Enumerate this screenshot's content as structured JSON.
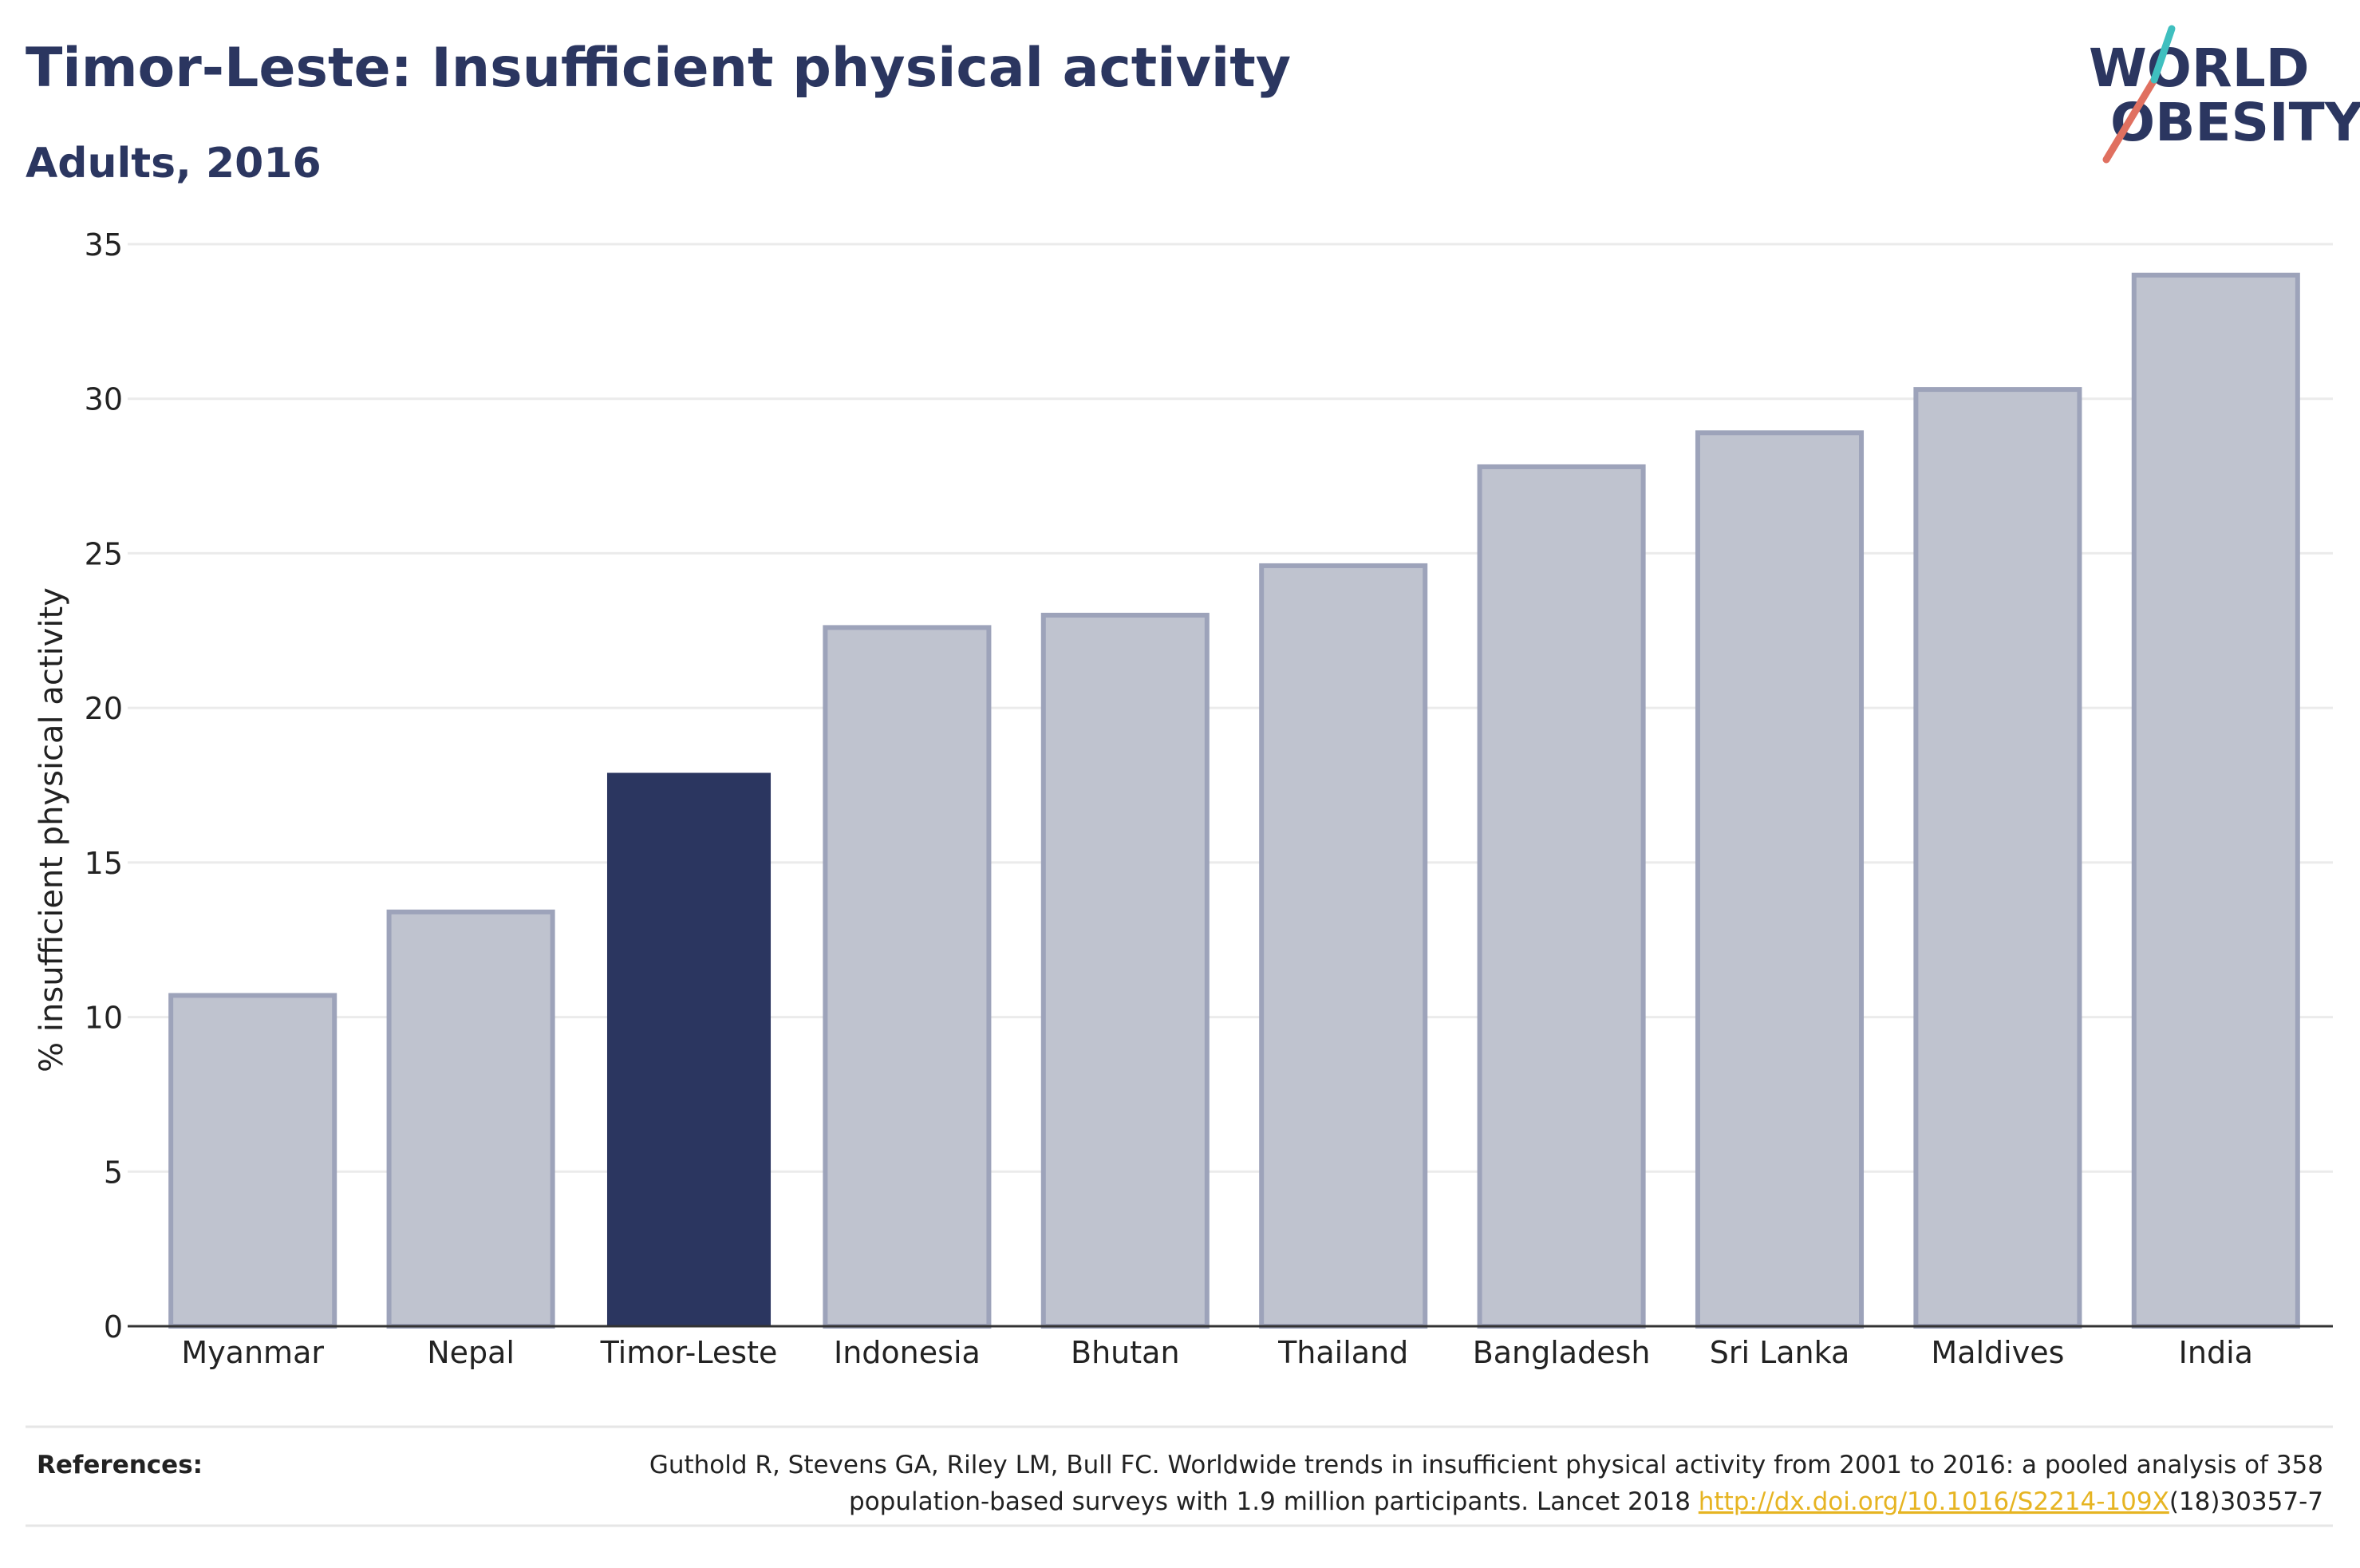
{
  "title": "Timor-Leste: Insufficient physical activity",
  "subtitle": "Adults, 2016",
  "logo": {
    "line1": "WORLD",
    "line2": "OBESITY",
    "colors": [
      "#2b3660",
      "#e07060",
      "#3fbfbf"
    ]
  },
  "references": {
    "label": "References:",
    "line1": "Guthold R, Stevens GA, Riley LM, Bull FC. Worldwide trends in insufficient physical activity from 2001 to 2016: a pooled analysis of 358",
    "line2_prefix": "population-based surveys with 1.9 million participants. Lancet 2018 ",
    "link": "http://dx.doi.org/10.1016/S2214-109X",
    "line2_suffix": "(18)30357-7",
    "link_color": "#e6b422"
  },
  "colors": {
    "highlight": "#2b3660",
    "bar": "#bfc3cf",
    "bar_edge": "#9da3ba",
    "text": "#2b3660"
  },
  "chart_data": {
    "type": "bar",
    "categories": [
      "Myanmar",
      "Nepal",
      "Timor-Leste",
      "Indonesia",
      "Bhutan",
      "Thailand",
      "Bangladesh",
      "Sri Lanka",
      "Maldives",
      "India"
    ],
    "values": [
      10.7,
      13.4,
      17.9,
      22.6,
      23.0,
      24.6,
      27.8,
      28.9,
      30.3,
      34.0
    ],
    "highlight": "Timor-Leste",
    "ylabel": "% insufficient physical activity",
    "ylim": [
      0,
      35
    ],
    "yticks": [
      0,
      5,
      10,
      15,
      20,
      25,
      30,
      35
    ],
    "grid": true
  }
}
